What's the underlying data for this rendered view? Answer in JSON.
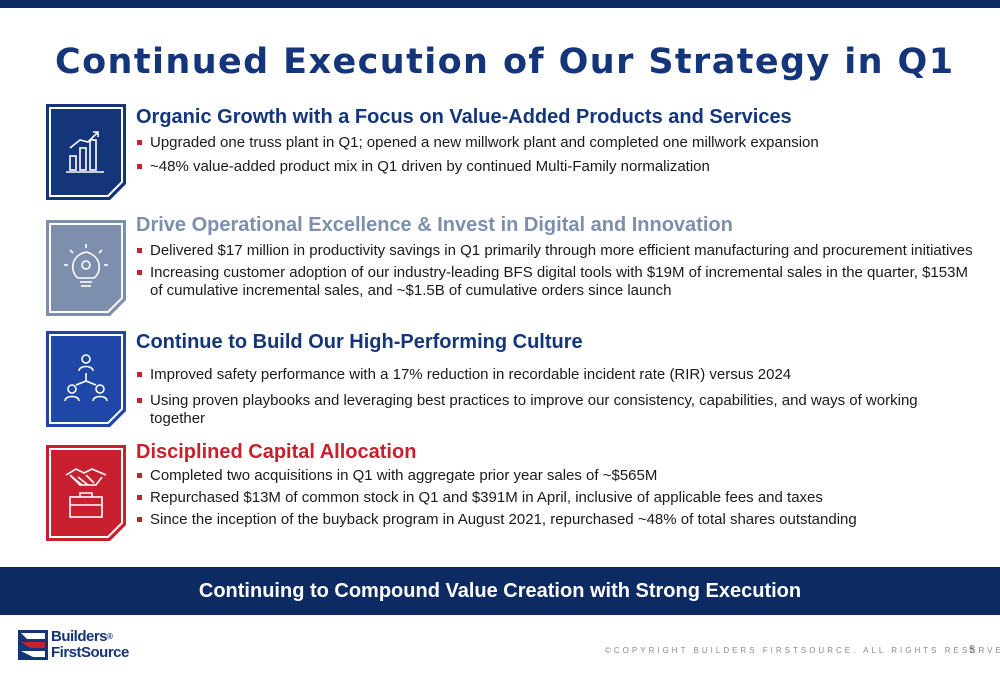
{
  "slide": {
    "title": "Continued Execution of Our Strategy in Q1",
    "page_number": "5",
    "copyright": "©COPYRIGHT BUILDERS FIRSTSOURCE. ALL RIGHTS RESERVED."
  },
  "sections": [
    {
      "title": "Organic Growth with a Focus on Value-Added Products and Services",
      "color": "#14357a",
      "icon": "growth-chart-icon",
      "bullets": [
        "Upgraded one truss plant in Q1; opened a new millwork plant and completed one millwork expansion",
        "~48% value-added product mix in Q1 driven by continued Multi-Family normalization"
      ]
    },
    {
      "title": "Drive Operational Excellence & Invest in Digital and Innovation",
      "color": "#7d8fad",
      "icon": "lightbulb-gear-icon",
      "bullets": [
        "Delivered $17 million in productivity savings in Q1 primarily through more efficient manufacturing and procurement initiatives",
        "Increasing customer adoption of our industry-leading BFS digital tools with $19M of incremental sales in the quarter, $153M of cumulative incremental sales, and ~$1.5B of cumulative orders since launch"
      ]
    },
    {
      "title": "Continue to Build Our High-Performing Culture",
      "color": "#1f47a8",
      "icon": "team-network-icon",
      "bullets": [
        "Improved safety performance with a 17% reduction in recordable incident rate (RIR) versus 2024",
        "Using proven playbooks and leveraging best practices to improve our consistency, capabilities, and ways of working together"
      ]
    },
    {
      "title": "Disciplined Capital Allocation",
      "color": "#c8202e",
      "icon": "handshake-briefcase-icon",
      "bullets": [
        "Completed two acquisitions in Q1 with aggregate prior year sales of ~$565M",
        "Repurchased $13M of common stock in Q1 and $391M in April, inclusive of applicable fees and taxes",
        "Since the inception of the buyback program in August 2021, repurchased ~48% of total shares outstanding"
      ]
    }
  ],
  "banner": {
    "text": "Continuing to Compound Value Creation with Strong Execution",
    "color": "#0e2a63"
  },
  "logo": {
    "line1": "Builders",
    "line2": "FirstSource",
    "registered": "®"
  }
}
